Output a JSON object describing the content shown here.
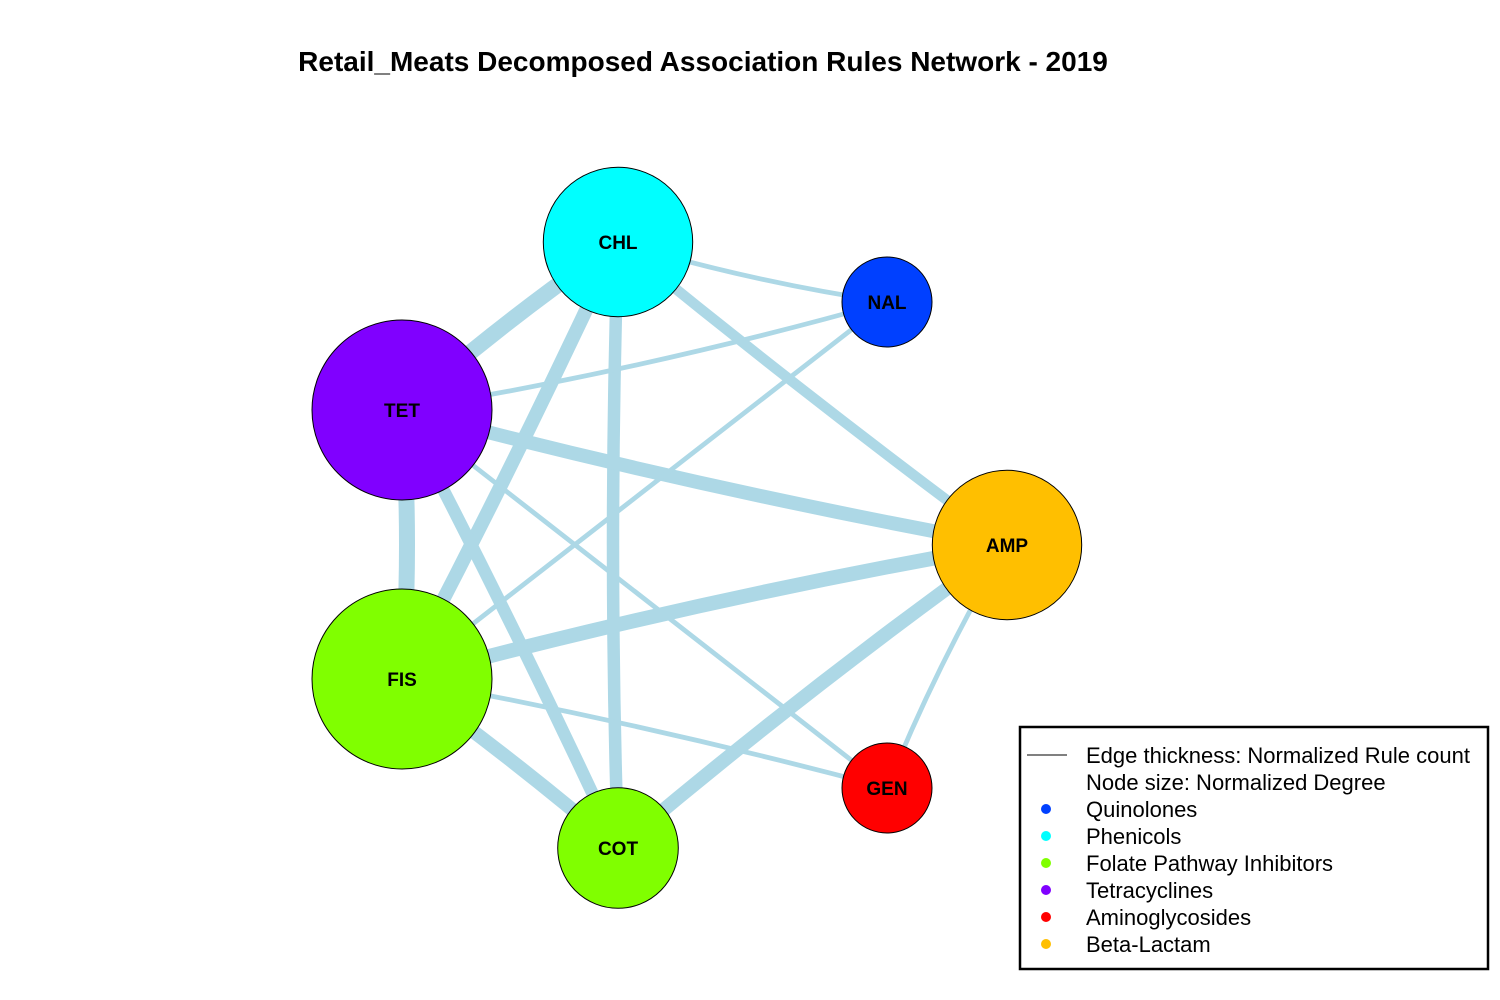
{
  "title": "Retail_Meats Decomposed Association Rules Network - 2019",
  "nodes": [
    {
      "id": "CHL",
      "label": "CHL",
      "category": "Phenicols",
      "color": "#00FFFF",
      "size": 0.83
    },
    {
      "id": "NAL",
      "label": "NAL",
      "category": "Quinolones",
      "color": "#0040FF",
      "size": 0.5
    },
    {
      "id": "TET",
      "label": "TET",
      "category": "Tetracyclines",
      "color": "#8000FF",
      "size": 1.0
    },
    {
      "id": "AMP",
      "label": "AMP",
      "category": "Beta-Lactam",
      "color": "#FFBF00",
      "size": 0.83
    },
    {
      "id": "FIS",
      "label": "FIS",
      "category": "Folate Pathway Inhibitors",
      "color": "#80FF00",
      "size": 1.0
    },
    {
      "id": "GEN",
      "label": "GEN",
      "category": "Aminoglycosides",
      "color": "#FF0000",
      "size": 0.5
    },
    {
      "id": "COT",
      "label": "COT",
      "category": "Folate Pathway Inhibitors",
      "color": "#80FF00",
      "size": 0.67
    }
  ],
  "edges": [
    {
      "source": "CHL",
      "target": "TET",
      "weight": 1.0
    },
    {
      "source": "CHL",
      "target": "FIS",
      "weight": 0.85
    },
    {
      "source": "CHL",
      "target": "COT",
      "weight": 0.75
    },
    {
      "source": "CHL",
      "target": "AMP",
      "weight": 0.6
    },
    {
      "source": "CHL",
      "target": "NAL",
      "weight": 0.2
    },
    {
      "source": "TET",
      "target": "NAL",
      "weight": 0.2
    },
    {
      "source": "TET",
      "target": "AMP",
      "weight": 0.85
    },
    {
      "source": "TET",
      "target": "FIS",
      "weight": 1.0
    },
    {
      "source": "TET",
      "target": "COT",
      "weight": 0.75
    },
    {
      "source": "TET",
      "target": "GEN",
      "weight": 0.2
    },
    {
      "source": "FIS",
      "target": "AMP",
      "weight": 0.9
    },
    {
      "source": "FIS",
      "target": "NAL",
      "weight": 0.2
    },
    {
      "source": "FIS",
      "target": "COT",
      "weight": 0.85
    },
    {
      "source": "FIS",
      "target": "GEN",
      "weight": 0.2
    },
    {
      "source": "COT",
      "target": "AMP",
      "weight": 0.85
    },
    {
      "source": "AMP",
      "target": "GEN",
      "weight": 0.2
    }
  ],
  "edge_color": "#ADD8E6",
  "legend": {
    "items": [
      {
        "label": "Edge thickness: Normalized Rule count",
        "marker": "line",
        "color": "#000000"
      },
      {
        "label": "Node size: Normalized Degree",
        "marker": "none",
        "color": ""
      },
      {
        "label": "Quinolones",
        "marker": "dot",
        "color": "#0040FF"
      },
      {
        "label": "Phenicols",
        "marker": "dot",
        "color": "#00FFFF"
      },
      {
        "label": "Folate Pathway Inhibitors",
        "marker": "dot",
        "color": "#80FF00"
      },
      {
        "label": "Tetracyclines",
        "marker": "dot",
        "color": "#8000FF"
      },
      {
        "label": "Aminoglycosides",
        "marker": "dot",
        "color": "#FF0000"
      },
      {
        "label": "Beta-Lactam",
        "marker": "dot",
        "color": "#FFBF00"
      }
    ]
  }
}
